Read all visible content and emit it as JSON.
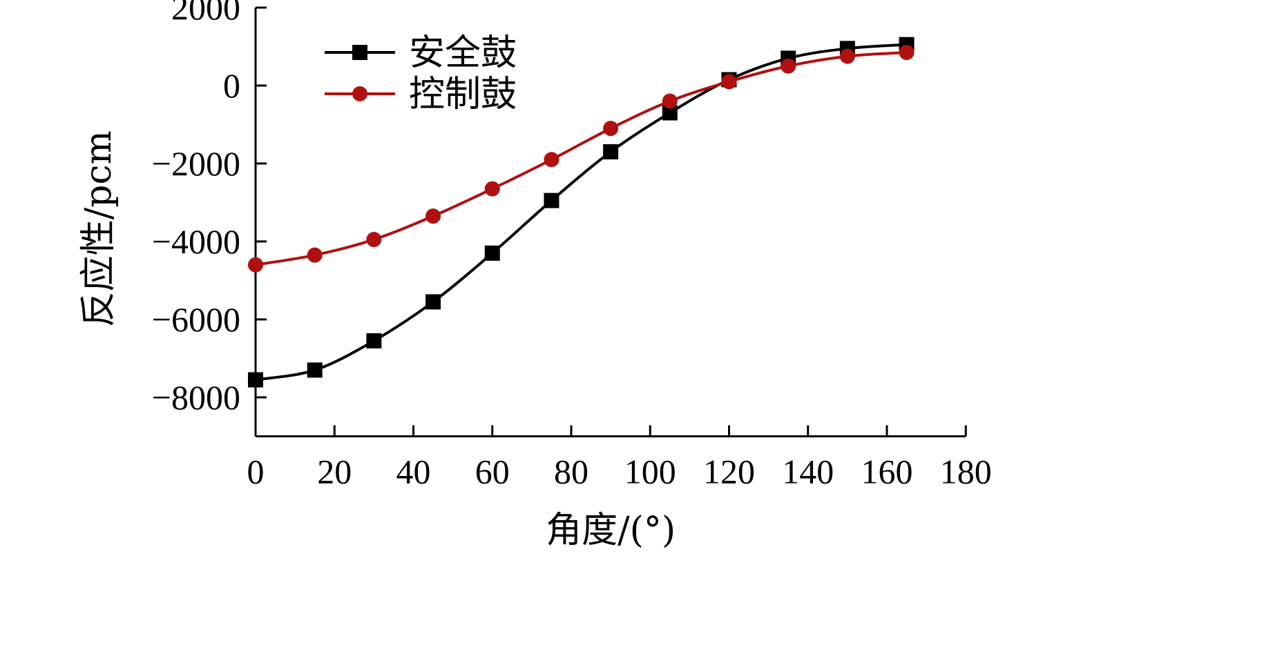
{
  "chart_data": {
    "type": "line",
    "title": "",
    "xlabel": "角度/(°)",
    "ylabel": "反应性/pcm",
    "xlim": [
      0,
      180
    ],
    "ylim": [
      -9000,
      2000
    ],
    "xticks": [
      0,
      20,
      40,
      60,
      80,
      100,
      120,
      140,
      160,
      180
    ],
    "yticks": [
      -8000,
      -6000,
      -4000,
      -2000,
      0,
      2000
    ],
    "ytick_labels": [
      "−8000",
      "−6000",
      "−4000",
      "−2000",
      "0",
      "2000"
    ],
    "grid": false,
    "legend_position": "top-left",
    "series": [
      {
        "name": "安全鼓",
        "color": "#000000",
        "marker": "square",
        "x": [
          0,
          15,
          30,
          45,
          60,
          75,
          90,
          105,
          120,
          135,
          150,
          165
        ],
        "y": [
          -7550,
          -7300,
          -6550,
          -5550,
          -4300,
          -2950,
          -1700,
          -700,
          150,
          700,
          950,
          1050
        ]
      },
      {
        "name": "控制鼓",
        "color": "#b01010",
        "marker": "circle",
        "x": [
          0,
          15,
          30,
          45,
          60,
          75,
          90,
          105,
          120,
          135,
          150,
          165
        ],
        "y": [
          -4600,
          -4350,
          -3950,
          -3350,
          -2650,
          -1900,
          -1100,
          -400,
          100,
          500,
          750,
          850
        ]
      }
    ]
  }
}
